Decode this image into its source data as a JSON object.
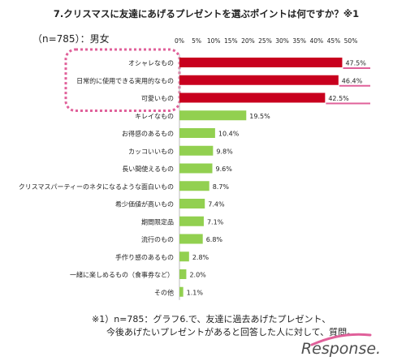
{
  "chart_data": {
    "type": "bar",
    "orientation": "horizontal",
    "title": "7.クリスマスに友達にあげるプレゼントを選ぶポイントは何ですか？※1",
    "sample_label": "（n=785）：男女",
    "xlim": [
      0,
      50
    ],
    "x_ticks": [
      "0%",
      "5%",
      "10%",
      "15%",
      "20%",
      "25%",
      "30%",
      "35%",
      "40%",
      "45%",
      "50%"
    ],
    "grid": false,
    "categories": [
      "オシャレなもの",
      "日常的に使用できる実用的なもの",
      "可愛いもの",
      "キレイなもの",
      "お得感のあるもの",
      "カッコいいもの",
      "長い間使えるもの",
      "クリスマスパーティーのネタになるような面白いもの",
      "希少価値が高いもの",
      "期間限定品",
      "流行のもの",
      "手作り感のあるもの",
      "一緒に楽しめるもの（食事券など）",
      "その他"
    ],
    "values": [
      47.5,
      46.4,
      42.5,
      19.5,
      10.4,
      9.8,
      9.6,
      8.7,
      7.4,
      7.1,
      6.8,
      2.8,
      2.0,
      1.1
    ],
    "value_labels": [
      "47.5%",
      "46.4%",
      "42.5%",
      "19.5%",
      "10.4%",
      "9.8%",
      "9.6%",
      "8.7%",
      "7.4%",
      "7.1%",
      "6.8%",
      "2.8%",
      "2.0%",
      "1.1%"
    ],
    "highlight_count": 3,
    "colors": {
      "highlight": "#c8001e",
      "normal": "#92d050",
      "highlight_frame": "#e0609a",
      "accent_line": "#e0609a"
    }
  },
  "footnote": {
    "line1": "※1）n=785：グラフ6.で、友達に過去あげたプレゼント、",
    "line2": "今後あげたいプレゼントがあると回答した人に対して、質問。"
  },
  "watermark": "Response."
}
